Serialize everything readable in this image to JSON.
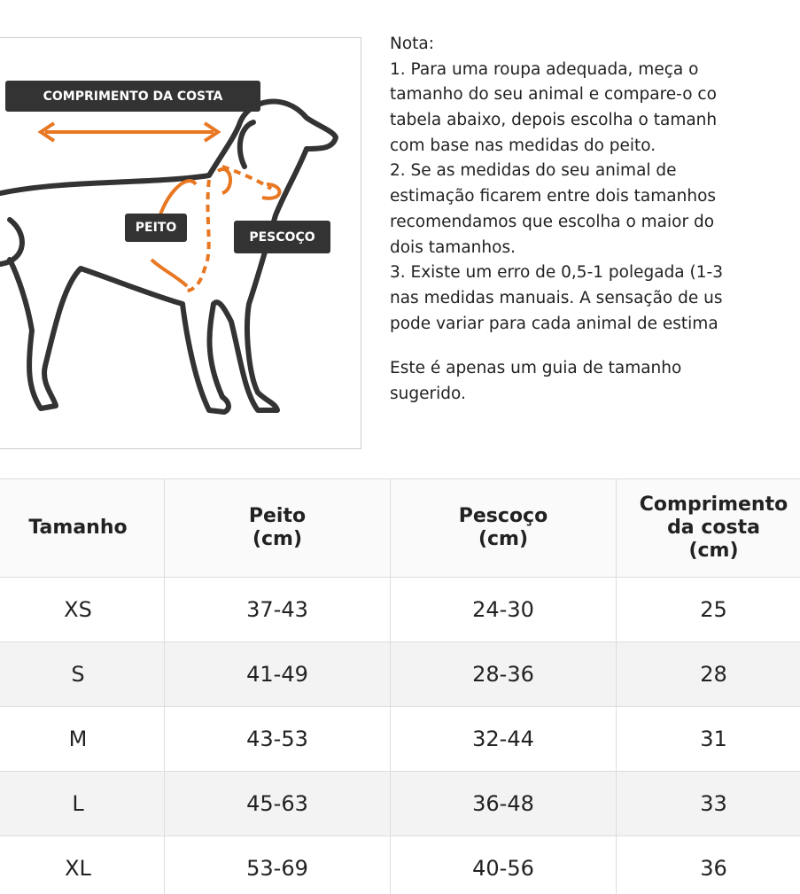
{
  "figure": {
    "labels": {
      "back": "COMPRIMENTO DA COSTA",
      "chest": "PEITO",
      "neck": "PESCOÇO"
    }
  },
  "note": {
    "lines": [
      "Nota:",
      "1. Para uma roupa adequada, meça o",
      "tamanho do seu animal e compare-o co",
      "tabela abaixo, depois escolha o tamanh",
      "com base nas medidas do peito.",
      "2. Se as medidas do seu animal de",
      "estimação ficarem entre dois tamanhos",
      "recomendamos que escolha o maior do",
      "dois tamanhos.",
      "3. Existe um erro de 0,5-1 polegada (1-3",
      "nas medidas manuais. A sensação de us",
      "pode variar para cada animal de estima"
    ],
    "footer": [
      "Este é apenas um guia de tamanho",
      "sugerido."
    ]
  },
  "table": {
    "header": [
      [
        "Tamanho"
      ],
      [
        "Peito",
        "(cm)"
      ],
      [
        "Pescoço",
        "(cm)"
      ],
      [
        "Comprimento",
        "da costa",
        "(cm)"
      ]
    ],
    "rows": [
      [
        "XS",
        "37-43",
        "24-30",
        "25"
      ],
      [
        "S",
        "41-49",
        "28-36",
        "28"
      ],
      [
        "M",
        "43-53",
        "32-44",
        "31"
      ],
      [
        "L",
        "45-63",
        "36-48",
        "33"
      ],
      [
        "XL",
        "53-69",
        "40-56",
        "36"
      ]
    ]
  }
}
